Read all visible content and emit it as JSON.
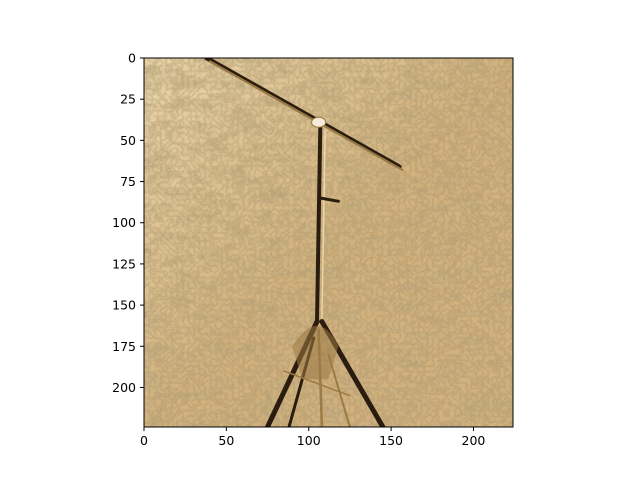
{
  "chart_data": {
    "type": "heatmap",
    "title": "",
    "xlabel": "",
    "ylabel": "",
    "xlim": [
      0,
      224
    ],
    "ylim": [
      224,
      0
    ],
    "x_ticks": [
      0,
      50,
      100,
      150,
      200
    ],
    "y_ticks": [
      0,
      25,
      50,
      75,
      100,
      125,
      150,
      175,
      200
    ],
    "grid": false,
    "legend": "none",
    "image_colors": {
      "base": "#d2b27e",
      "light": "#ead6ac",
      "shadow": "#9c7a44",
      "line": "#2a1c0e",
      "highlight": "#f4ecd8",
      "frame": "#000000"
    }
  }
}
